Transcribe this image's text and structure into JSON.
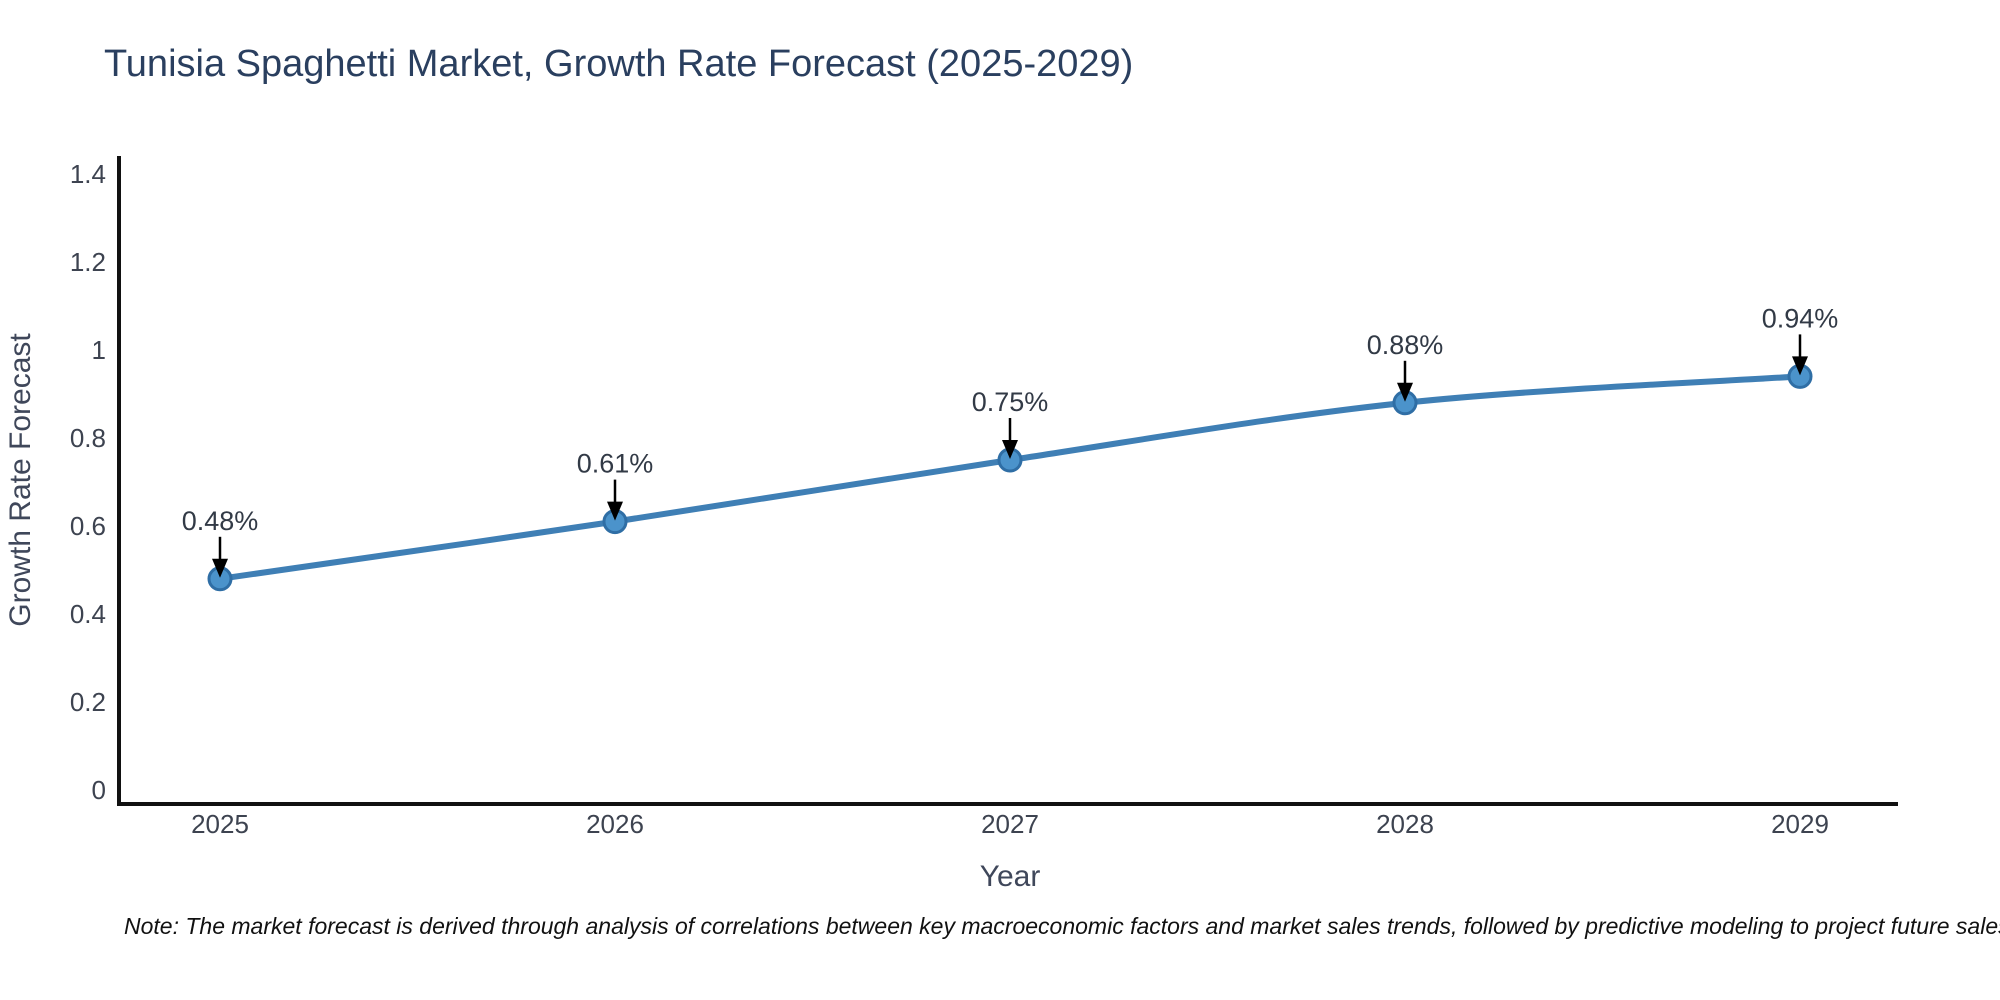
{
  "page": {
    "note": "Note: The market forecast is derived through analysis of correlations between key macroeconomic factors and market sales trends, followed by predictive modeling to project future sales"
  },
  "chart_data": {
    "type": "line",
    "title": "Tunisia Spaghetti Market, Growth Rate Forecast (2025-2029)",
    "xlabel": "Year",
    "ylabel": "Growth Rate Forecast",
    "x": [
      2025,
      2026,
      2027,
      2028,
      2029
    ],
    "series": [
      {
        "name": "Growth Rate Forecast",
        "values": [
          0.48,
          0.61,
          0.75,
          0.88,
          0.94
        ],
        "point_labels": [
          "0.48%",
          "0.61%",
          "0.75%",
          "0.88%",
          "0.94%"
        ]
      }
    ],
    "xtick_labels": [
      "2025",
      "2026",
      "2027",
      "2028",
      "2029"
    ],
    "ytick_values": [
      0,
      0.2,
      0.4,
      0.6,
      0.8,
      1.0,
      1.2,
      1.4
    ],
    "ytick_labels": [
      "0",
      "0.2",
      "0.4",
      "0.6",
      "0.8",
      "1",
      "1.2",
      "1.4"
    ],
    "ylim": [
      0,
      1.4
    ],
    "grid": false,
    "legend_position": "none",
    "annotations_have_arrows": true,
    "colors": {
      "line": "#3f7fb5",
      "marker_fill": "#4b93cb",
      "marker_edge": "#2f6ea5",
      "arrow": "#000000",
      "title_text": "#2a3f5f",
      "axis_label_text": "#3f475a",
      "tick_text": "#3d4350",
      "annotation_text": "#323a46",
      "axis_line": "#111111"
    }
  }
}
